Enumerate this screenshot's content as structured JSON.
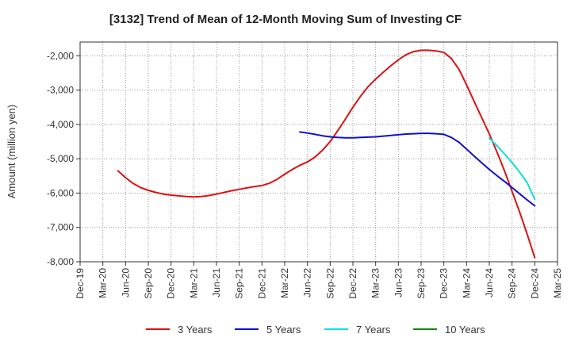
{
  "chart_data": {
    "type": "line",
    "title": "[3132]  Trend of Mean of 12-Month Moving Sum of Investing CF",
    "xlabel": "",
    "ylabel": "Amount (million yen)",
    "ylim": [
      -8000,
      -1600
    ],
    "yticks": [
      -2000,
      -3000,
      -4000,
      -5000,
      -6000,
      -7000,
      -8000
    ],
    "ytick_labels": [
      "-2,000",
      "-3,000",
      "-4,000",
      "-5,000",
      "-6,000",
      "-7,000",
      "-8,000"
    ],
    "x_categories": [
      "Dec-19",
      "Mar-20",
      "Jun-20",
      "Sep-20",
      "Dec-20",
      "Mar-21",
      "Jun-21",
      "Sep-21",
      "Dec-21",
      "Mar-22",
      "Jun-22",
      "Sep-22",
      "Dec-22",
      "Mar-23",
      "Jun-23",
      "Sep-23",
      "Dec-23",
      "Mar-24",
      "Jun-24",
      "Sep-24",
      "Dec-24",
      "Mar-25"
    ],
    "grid": true,
    "legend_position": "bottom",
    "series": [
      {
        "name": "3 Years",
        "color": "#dd1111",
        "points": [
          [
            "May-20",
            -5350
          ],
          [
            "Jun-20",
            -5550
          ],
          [
            "Jul-20",
            -5720
          ],
          [
            "Aug-20",
            -5840
          ],
          [
            "Sep-20",
            -5920
          ],
          [
            "Oct-20",
            -5980
          ],
          [
            "Nov-20",
            -6030
          ],
          [
            "Dec-20",
            -6060
          ],
          [
            "Jan-21",
            -6080
          ],
          [
            "Feb-21",
            -6100
          ],
          [
            "Mar-21",
            -6110
          ],
          [
            "Apr-21",
            -6100
          ],
          [
            "May-21",
            -6070
          ],
          [
            "Jun-21",
            -6030
          ],
          [
            "Jul-21",
            -5980
          ],
          [
            "Aug-21",
            -5930
          ],
          [
            "Sep-21",
            -5890
          ],
          [
            "Oct-21",
            -5850
          ],
          [
            "Nov-21",
            -5810
          ],
          [
            "Dec-21",
            -5780
          ],
          [
            "Jan-22",
            -5710
          ],
          [
            "Feb-22",
            -5600
          ],
          [
            "Mar-22",
            -5450
          ],
          [
            "Apr-22",
            -5310
          ],
          [
            "May-22",
            -5190
          ],
          [
            "Jun-22",
            -5090
          ],
          [
            "Jul-22",
            -4950
          ],
          [
            "Aug-22",
            -4750
          ],
          [
            "Sep-22",
            -4500
          ],
          [
            "Oct-22",
            -4180
          ],
          [
            "Nov-22",
            -3850
          ],
          [
            "Dec-22",
            -3500
          ],
          [
            "Jan-23",
            -3180
          ],
          [
            "Feb-23",
            -2900
          ],
          [
            "Mar-23",
            -2680
          ],
          [
            "Apr-23",
            -2480
          ],
          [
            "May-23",
            -2290
          ],
          [
            "Jun-23",
            -2120
          ],
          [
            "Jul-23",
            -1970
          ],
          [
            "Aug-23",
            -1880
          ],
          [
            "Sep-23",
            -1840
          ],
          [
            "Oct-23",
            -1840
          ],
          [
            "Nov-23",
            -1860
          ],
          [
            "Dec-23",
            -1900
          ],
          [
            "Jan-24",
            -2080
          ],
          [
            "Feb-24",
            -2400
          ],
          [
            "Mar-24",
            -2850
          ],
          [
            "Apr-24",
            -3330
          ],
          [
            "May-24",
            -3800
          ],
          [
            "Jun-24",
            -4280
          ],
          [
            "Jul-24",
            -4800
          ],
          [
            "Aug-24",
            -5350
          ],
          [
            "Sep-24",
            -5950
          ],
          [
            "Oct-24",
            -6550
          ],
          [
            "Nov-24",
            -7200
          ],
          [
            "Dec-24",
            -7880
          ]
        ]
      },
      {
        "name": "5 Years",
        "color": "#1111cc",
        "points": [
          [
            "May-22",
            -4220
          ],
          [
            "Jun-22",
            -4250
          ],
          [
            "Jul-22",
            -4290
          ],
          [
            "Aug-22",
            -4330
          ],
          [
            "Sep-22",
            -4360
          ],
          [
            "Oct-22",
            -4380
          ],
          [
            "Nov-22",
            -4390
          ],
          [
            "Dec-22",
            -4390
          ],
          [
            "Jan-23",
            -4380
          ],
          [
            "Feb-23",
            -4370
          ],
          [
            "Mar-23",
            -4360
          ],
          [
            "Apr-23",
            -4340
          ],
          [
            "May-23",
            -4320
          ],
          [
            "Jun-23",
            -4300
          ],
          [
            "Jul-23",
            -4280
          ],
          [
            "Aug-23",
            -4270
          ],
          [
            "Sep-23",
            -4260
          ],
          [
            "Oct-23",
            -4260
          ],
          [
            "Nov-23",
            -4270
          ],
          [
            "Dec-23",
            -4290
          ],
          [
            "Jan-24",
            -4380
          ],
          [
            "Feb-24",
            -4520
          ],
          [
            "Mar-24",
            -4720
          ],
          [
            "Apr-24",
            -4920
          ],
          [
            "May-24",
            -5120
          ],
          [
            "Jun-24",
            -5310
          ],
          [
            "Jul-24",
            -5490
          ],
          [
            "Aug-24",
            -5660
          ],
          [
            "Sep-24",
            -5840
          ],
          [
            "Oct-24",
            -6020
          ],
          [
            "Nov-24",
            -6200
          ],
          [
            "Dec-24",
            -6370
          ]
        ]
      },
      {
        "name": "7 Years",
        "color": "#11dddd",
        "points": [
          [
            "Jun-24",
            -4400
          ],
          [
            "Jul-24",
            -4620
          ],
          [
            "Aug-24",
            -4860
          ],
          [
            "Sep-24",
            -5110
          ],
          [
            "Oct-24",
            -5390
          ],
          [
            "Nov-24",
            -5700
          ],
          [
            "Dec-24",
            -6180
          ]
        ]
      },
      {
        "name": "10 Years",
        "color": "#118811",
        "points": []
      }
    ]
  }
}
